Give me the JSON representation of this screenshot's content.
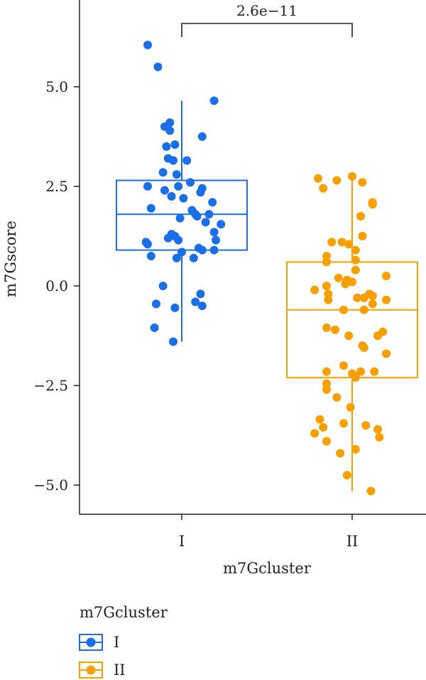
{
  "chart_data": {
    "type": "box",
    "title": "",
    "xlabel": "m7Gcluster",
    "ylabel": "m7Gscore",
    "ylim": [
      -5.5,
      7.0
    ],
    "yticks": [
      "5.0",
      "2.5",
      "0.0",
      "−2.5",
      "−5.0"
    ],
    "ytick_values": [
      5.0,
      2.5,
      0.0,
      -2.5,
      -5.0
    ],
    "categories": [
      "I",
      "II"
    ],
    "significance": {
      "label": "2.6e−11",
      "between": [
        "I",
        "II"
      ]
    },
    "legend": {
      "title": "m7Gcluster",
      "placement": "bottom-left",
      "entries": [
        "I",
        "II"
      ]
    },
    "series": [
      {
        "name": "I",
        "color": "#1a6ee6",
        "box": {
          "whisker_low": -1.4,
          "q1": 0.9,
          "median": 1.8,
          "q3": 2.65,
          "whisker_high": 4.65
        },
        "points": [
          [
            -0.2,
            6.05
          ],
          [
            -0.14,
            5.5
          ],
          [
            0.19,
            4.65
          ],
          [
            -0.07,
            4.1
          ],
          [
            -0.07,
            3.9
          ],
          [
            -0.1,
            4.0
          ],
          [
            0.12,
            3.75
          ],
          [
            -0.04,
            3.55
          ],
          [
            -0.09,
            3.5
          ],
          [
            -0.08,
            3.2
          ],
          [
            -0.05,
            3.15
          ],
          [
            0.03,
            3.15
          ],
          [
            -0.11,
            2.85
          ],
          [
            -0.03,
            2.8
          ],
          [
            0.05,
            2.6
          ],
          [
            -0.02,
            2.5
          ],
          [
            -0.2,
            2.5
          ],
          [
            -0.1,
            2.4
          ],
          [
            0.12,
            2.45
          ],
          [
            0.11,
            2.35
          ],
          [
            -0.06,
            2.25
          ],
          [
            0.01,
            2.2
          ],
          [
            0.18,
            2.1
          ],
          [
            0.06,
            1.9
          ],
          [
            -0.18,
            1.95
          ],
          [
            0.08,
            1.8
          ],
          [
            0.16,
            1.8
          ],
          [
            0.14,
            1.6
          ],
          [
            0.09,
            1.75
          ],
          [
            -0.01,
            1.7
          ],
          [
            0.23,
            1.55
          ],
          [
            0.19,
            1.35
          ],
          [
            -0.06,
            1.3
          ],
          [
            -0.08,
            1.2
          ],
          [
            -0.04,
            1.25
          ],
          [
            -0.02,
            1.15
          ],
          [
            0.2,
            1.15
          ],
          [
            -0.21,
            1.1
          ],
          [
            -0.2,
            1.05
          ],
          [
            0.1,
            0.95
          ],
          [
            0.0,
            0.85
          ],
          [
            0.12,
            0.9
          ],
          [
            0.19,
            0.9
          ],
          [
            -0.18,
            0.75
          ],
          [
            -0.03,
            0.7
          ],
          [
            0.07,
            0.7
          ],
          [
            -0.11,
            0.0
          ],
          [
            0.11,
            -0.2
          ],
          [
            -0.15,
            -0.45
          ],
          [
            0.08,
            -0.4
          ],
          [
            0.12,
            -0.5
          ],
          [
            -0.04,
            -0.55
          ],
          [
            -0.16,
            -1.05
          ],
          [
            -0.05,
            -1.4
          ]
        ]
      },
      {
        "name": "II",
        "color": "#f5a000",
        "box": {
          "whisker_low": -5.15,
          "q1": -2.3,
          "median": -0.6,
          "q3": 0.6,
          "whisker_high": 2.7
        },
        "points": [
          [
            -0.2,
            2.7
          ],
          [
            0.0,
            2.75
          ],
          [
            -0.09,
            2.65
          ],
          [
            0.06,
            2.6
          ],
          [
            -0.17,
            2.45
          ],
          [
            0.12,
            2.1
          ],
          [
            0.12,
            2.05
          ],
          [
            0.05,
            1.75
          ],
          [
            0.06,
            1.25
          ],
          [
            -0.12,
            1.1
          ],
          [
            -0.06,
            1.1
          ],
          [
            -0.02,
            1.05
          ],
          [
            0.02,
            0.9
          ],
          [
            -0.15,
            0.75
          ],
          [
            -0.15,
            0.6
          ],
          [
            0.02,
            0.65
          ],
          [
            0.02,
            0.4
          ],
          [
            -0.08,
            0.2
          ],
          [
            -0.03,
            0.15
          ],
          [
            0.2,
            0.25
          ],
          [
            -0.04,
            0.05
          ],
          [
            0.0,
            0.1
          ],
          [
            -0.15,
            0.0
          ],
          [
            -0.22,
            -0.1
          ],
          [
            -0.14,
            -0.2
          ],
          [
            0.1,
            -0.2
          ],
          [
            0.12,
            -0.25
          ],
          [
            0.03,
            -0.3
          ],
          [
            0.07,
            -0.3
          ],
          [
            -0.14,
            -0.35
          ],
          [
            0.2,
            -0.35
          ],
          [
            0.12,
            -0.45
          ],
          [
            0.07,
            -0.6
          ],
          [
            -0.05,
            -0.6
          ],
          [
            -0.15,
            -1.05
          ],
          [
            -0.1,
            -1.1
          ],
          [
            0.18,
            -1.15
          ],
          [
            -0.02,
            -1.25
          ],
          [
            0.15,
            -1.25
          ],
          [
            0.06,
            -1.5
          ],
          [
            0.07,
            -1.55
          ],
          [
            0.2,
            -1.7
          ],
          [
            -0.05,
            -2.0
          ],
          [
            0.05,
            -2.15
          ],
          [
            0.13,
            -2.15
          ],
          [
            -0.15,
            -2.15
          ],
          [
            0.0,
            -2.2
          ],
          [
            0.02,
            -2.3
          ],
          [
            -0.15,
            -2.45
          ],
          [
            -0.15,
            -2.6
          ],
          [
            -0.09,
            -2.8
          ],
          [
            -0.01,
            -3.05
          ],
          [
            -0.19,
            -3.35
          ],
          [
            -0.17,
            -3.55
          ],
          [
            -0.05,
            -3.45
          ],
          [
            0.08,
            -3.5
          ],
          [
            0.15,
            -3.6
          ],
          [
            -0.22,
            -3.7
          ],
          [
            0.16,
            -3.8
          ],
          [
            -0.15,
            -3.9
          ],
          [
            0.02,
            -4.1
          ],
          [
            -0.07,
            -4.2
          ],
          [
            -0.03,
            -4.75
          ],
          [
            0.11,
            -5.15
          ]
        ]
      }
    ]
  }
}
